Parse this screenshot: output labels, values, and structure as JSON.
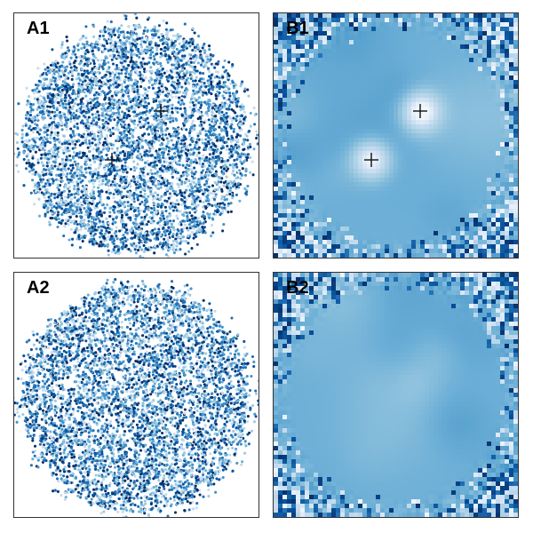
{
  "figure": {
    "panels": [
      {
        "label": "A1",
        "kind": "scatter",
        "cross_markers": 2
      },
      {
        "label": "B1",
        "kind": "heatmap",
        "cross_markers": 2
      },
      {
        "label": "A2",
        "kind": "scatter",
        "cross_markers": 0
      },
      {
        "label": "B2",
        "kind": "heatmap",
        "cross_markers": 0
      }
    ],
    "colormap": [
      "#f0f6fc",
      "#c6dbef",
      "#9ecae1",
      "#6baed6",
      "#4292c6",
      "#2171b5",
      "#08519c",
      "#08306b"
    ]
  },
  "chart_data": [
    {
      "type": "scatter",
      "title": "A1",
      "shape": "disc",
      "axes_visible": false,
      "grid": false,
      "markers": [
        {
          "symbol": "+",
          "x": 0.6,
          "y": 0.6
        },
        {
          "symbol": "+",
          "x": 0.4,
          "y": 0.4
        }
      ]
    },
    {
      "type": "heatmap",
      "title": "B1",
      "axes_visible": false,
      "grid": false,
      "markers": [
        {
          "symbol": "+",
          "x": 0.6,
          "y": 0.6
        },
        {
          "symbol": "+",
          "x": 0.4,
          "y": 0.4
        }
      ]
    },
    {
      "type": "scatter",
      "title": "A2",
      "shape": "disc",
      "axes_visible": false,
      "grid": false,
      "markers": []
    },
    {
      "type": "heatmap",
      "title": "B2",
      "axes_visible": false,
      "grid": false,
      "markers": []
    }
  ]
}
